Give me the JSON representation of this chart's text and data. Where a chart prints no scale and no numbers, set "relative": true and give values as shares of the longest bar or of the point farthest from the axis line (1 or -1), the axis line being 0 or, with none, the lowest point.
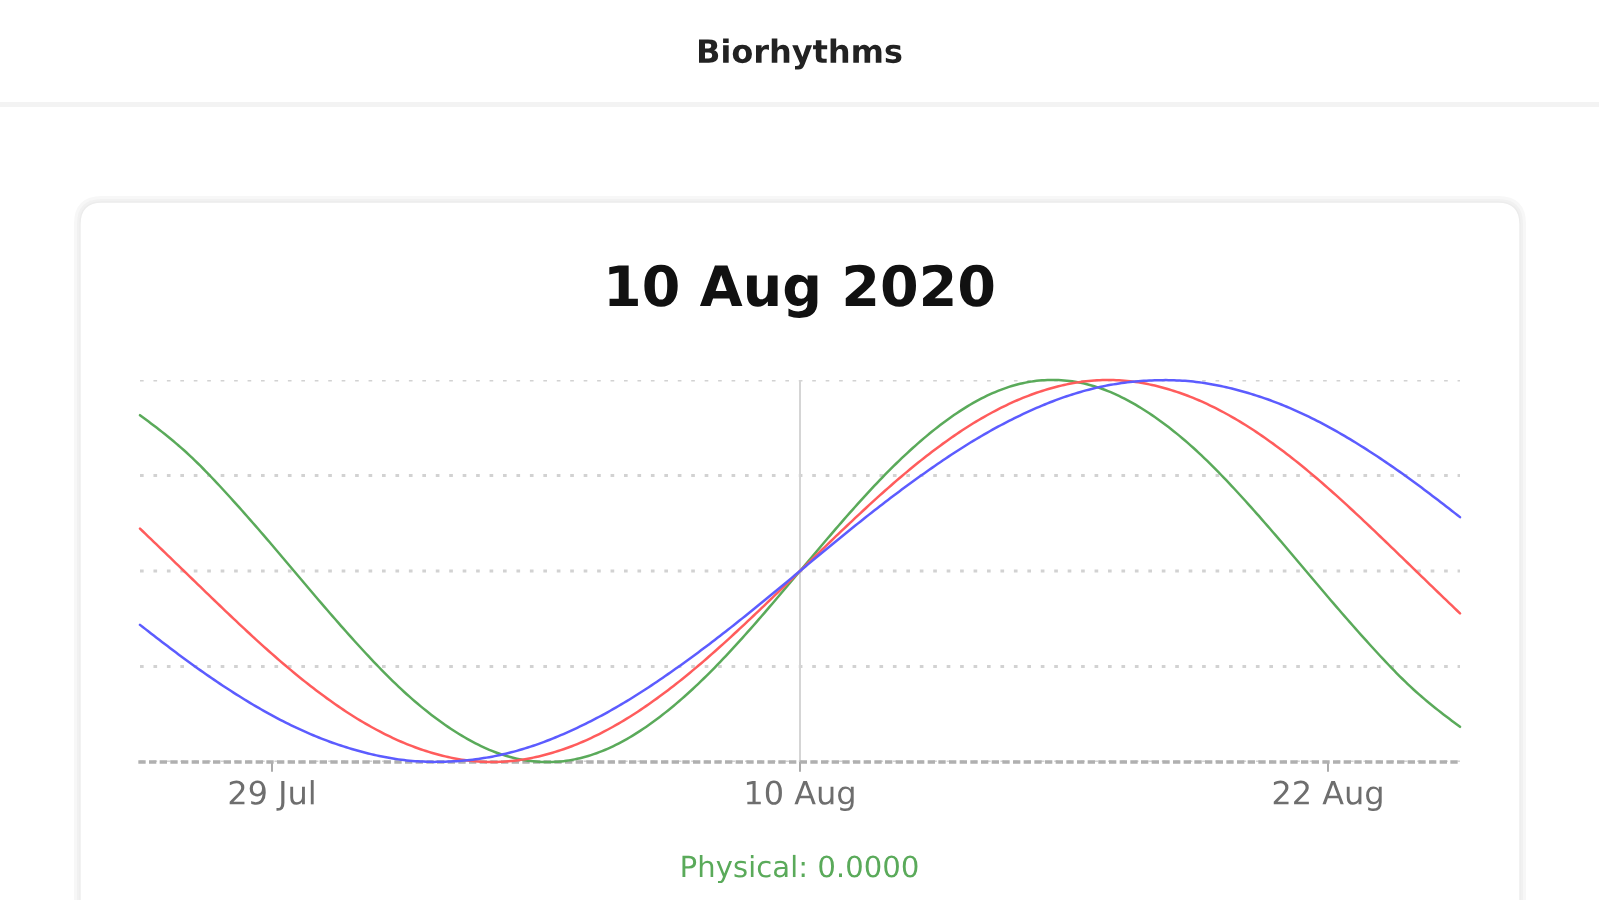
{
  "chart_data": {
    "type": "line",
    "title": "Biorhythms",
    "subtitle": "10 Aug 2020",
    "relative": true,
    "x": [
      "2020-07-26",
      "2020-07-27",
      "2020-07-28",
      "2020-07-29",
      "2020-07-30",
      "2020-07-31",
      "2020-08-01",
      "2020-08-02",
      "2020-08-03",
      "2020-08-04",
      "2020-08-05",
      "2020-08-06",
      "2020-08-07",
      "2020-08-08",
      "2020-08-09",
      "2020-08-10",
      "2020-08-11",
      "2020-08-12",
      "2020-08-13",
      "2020-08-14",
      "2020-08-15",
      "2020-08-16",
      "2020-08-17",
      "2020-08-18",
      "2020-08-19",
      "2020-08-20",
      "2020-08-21",
      "2020-08-22",
      "2020-08-23",
      "2020-08-24",
      "2020-08-25"
    ],
    "series": [
      {
        "color": "#5aaa5a",
        "values": [
          0.908,
          0.816,
          0.699,
          0.568,
          0.432,
          0.301,
          0.184,
          0.092,
          0.029,
          0.001,
          0.01,
          0.056,
          0.135,
          0.24,
          0.365,
          0.5,
          0.635,
          0.76,
          0.865,
          0.944,
          0.99,
          0.999,
          0.971,
          0.908,
          0.816,
          0.699,
          0.568,
          0.432,
          0.301,
          0.184,
          0.092
        ]
      },
      {
        "color": "#ff5c5c",
        "values": [
          0.611,
          0.5,
          0.389,
          0.283,
          0.188,
          0.109,
          0.05,
          0.013,
          0.0,
          0.013,
          0.05,
          0.109,
          0.188,
          0.283,
          0.389,
          0.5,
          0.611,
          0.717,
          0.812,
          0.891,
          0.95,
          0.987,
          1.0,
          0.987,
          0.95,
          0.891,
          0.812,
          0.717,
          0.611,
          0.5,
          0.389
        ]
      },
      {
        "color": "#5c5cff",
        "values": [
          0.359,
          0.271,
          0.191,
          0.122,
          0.067,
          0.028,
          0.005,
          0.001,
          0.014,
          0.045,
          0.093,
          0.155,
          0.23,
          0.314,
          0.405,
          0.5,
          0.595,
          0.686,
          0.77,
          0.845,
          0.907,
          0.955,
          0.986,
          0.999,
          0.995,
          0.972,
          0.933,
          0.878,
          0.809,
          0.729,
          0.641
        ]
      }
    ],
    "xlim": [
      "2020-07-26",
      "2020-08-25"
    ],
    "xticks": [
      {
        "value": "2020-07-29",
        "label": "29 Jul"
      },
      {
        "value": "2020-08-10",
        "label": "10 Aug"
      },
      {
        "value": "2020-08-22",
        "label": "22 Aug"
      }
    ],
    "ref_lines": [
      {
        "axis": "x",
        "value": "2020-08-10",
        "color": "#d4d4d4",
        "line_style": "solid"
      }
    ],
    "grid": "y",
    "tick_labels": "x",
    "line_style": "solid",
    "annotations": [
      "Physical: 0.0000"
    ]
  }
}
